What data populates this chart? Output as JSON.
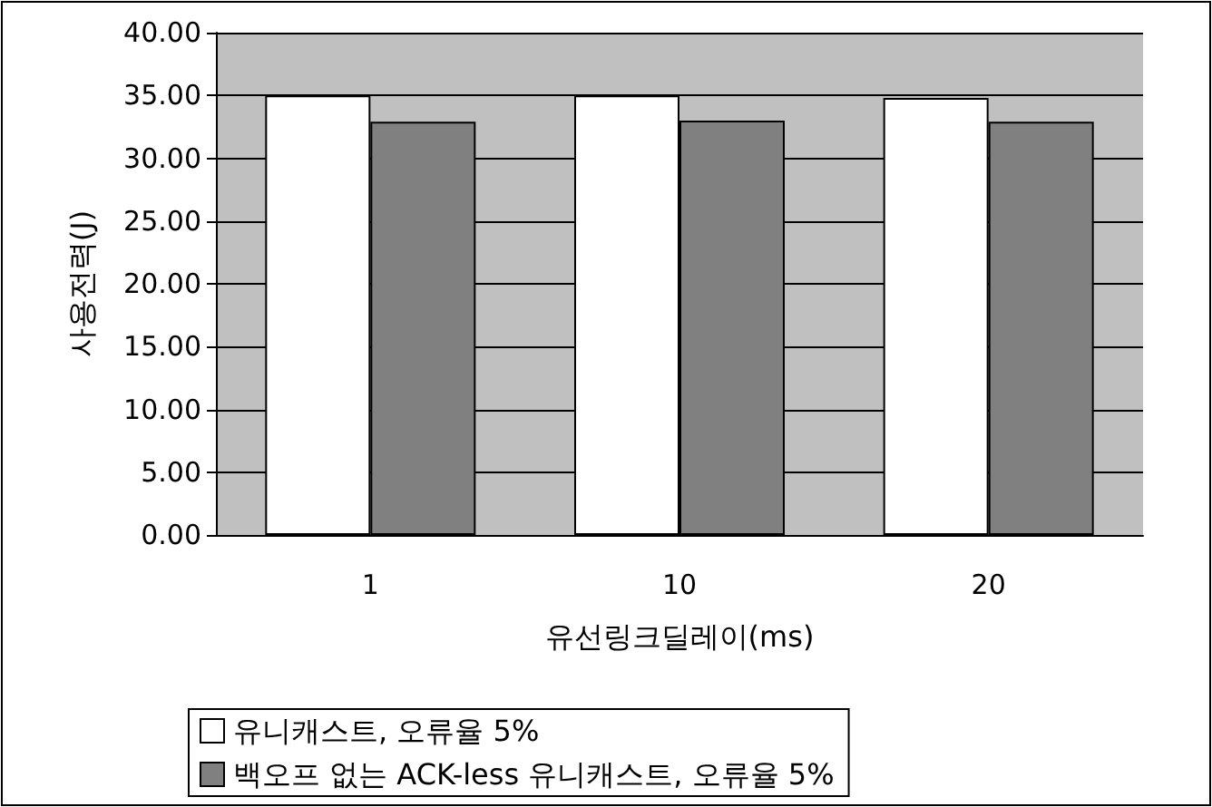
{
  "chart_data": {
    "type": "bar",
    "xlabel": "유선링크딜레이(ms)",
    "ylabel": "사용전력(J)",
    "categories": [
      "1",
      "10",
      "20"
    ],
    "series": [
      {
        "name": "유니캐스트, 오류율 5%",
        "color": "#ffffff",
        "values": [
          35.0,
          35.0,
          34.8
        ]
      },
      {
        "name": "백오프 없는 ACK-less 유니캐스트, 오류율 5%",
        "color": "#808080",
        "values": [
          32.9,
          33.0,
          32.9
        ]
      }
    ],
    "ylim": [
      0,
      40
    ],
    "yticks": [
      {
        "value": 0,
        "label": "0.00"
      },
      {
        "value": 5,
        "label": "5.00"
      },
      {
        "value": 10,
        "label": "10.00"
      },
      {
        "value": 15,
        "label": "15.00"
      },
      {
        "value": 20,
        "label": "20.00"
      },
      {
        "value": 25,
        "label": "25.00"
      },
      {
        "value": 30,
        "label": "30.00"
      },
      {
        "value": 35,
        "label": "35.00"
      },
      {
        "value": 40,
        "label": "40.00"
      }
    ],
    "grid": "y",
    "legend": "bottom left"
  }
}
